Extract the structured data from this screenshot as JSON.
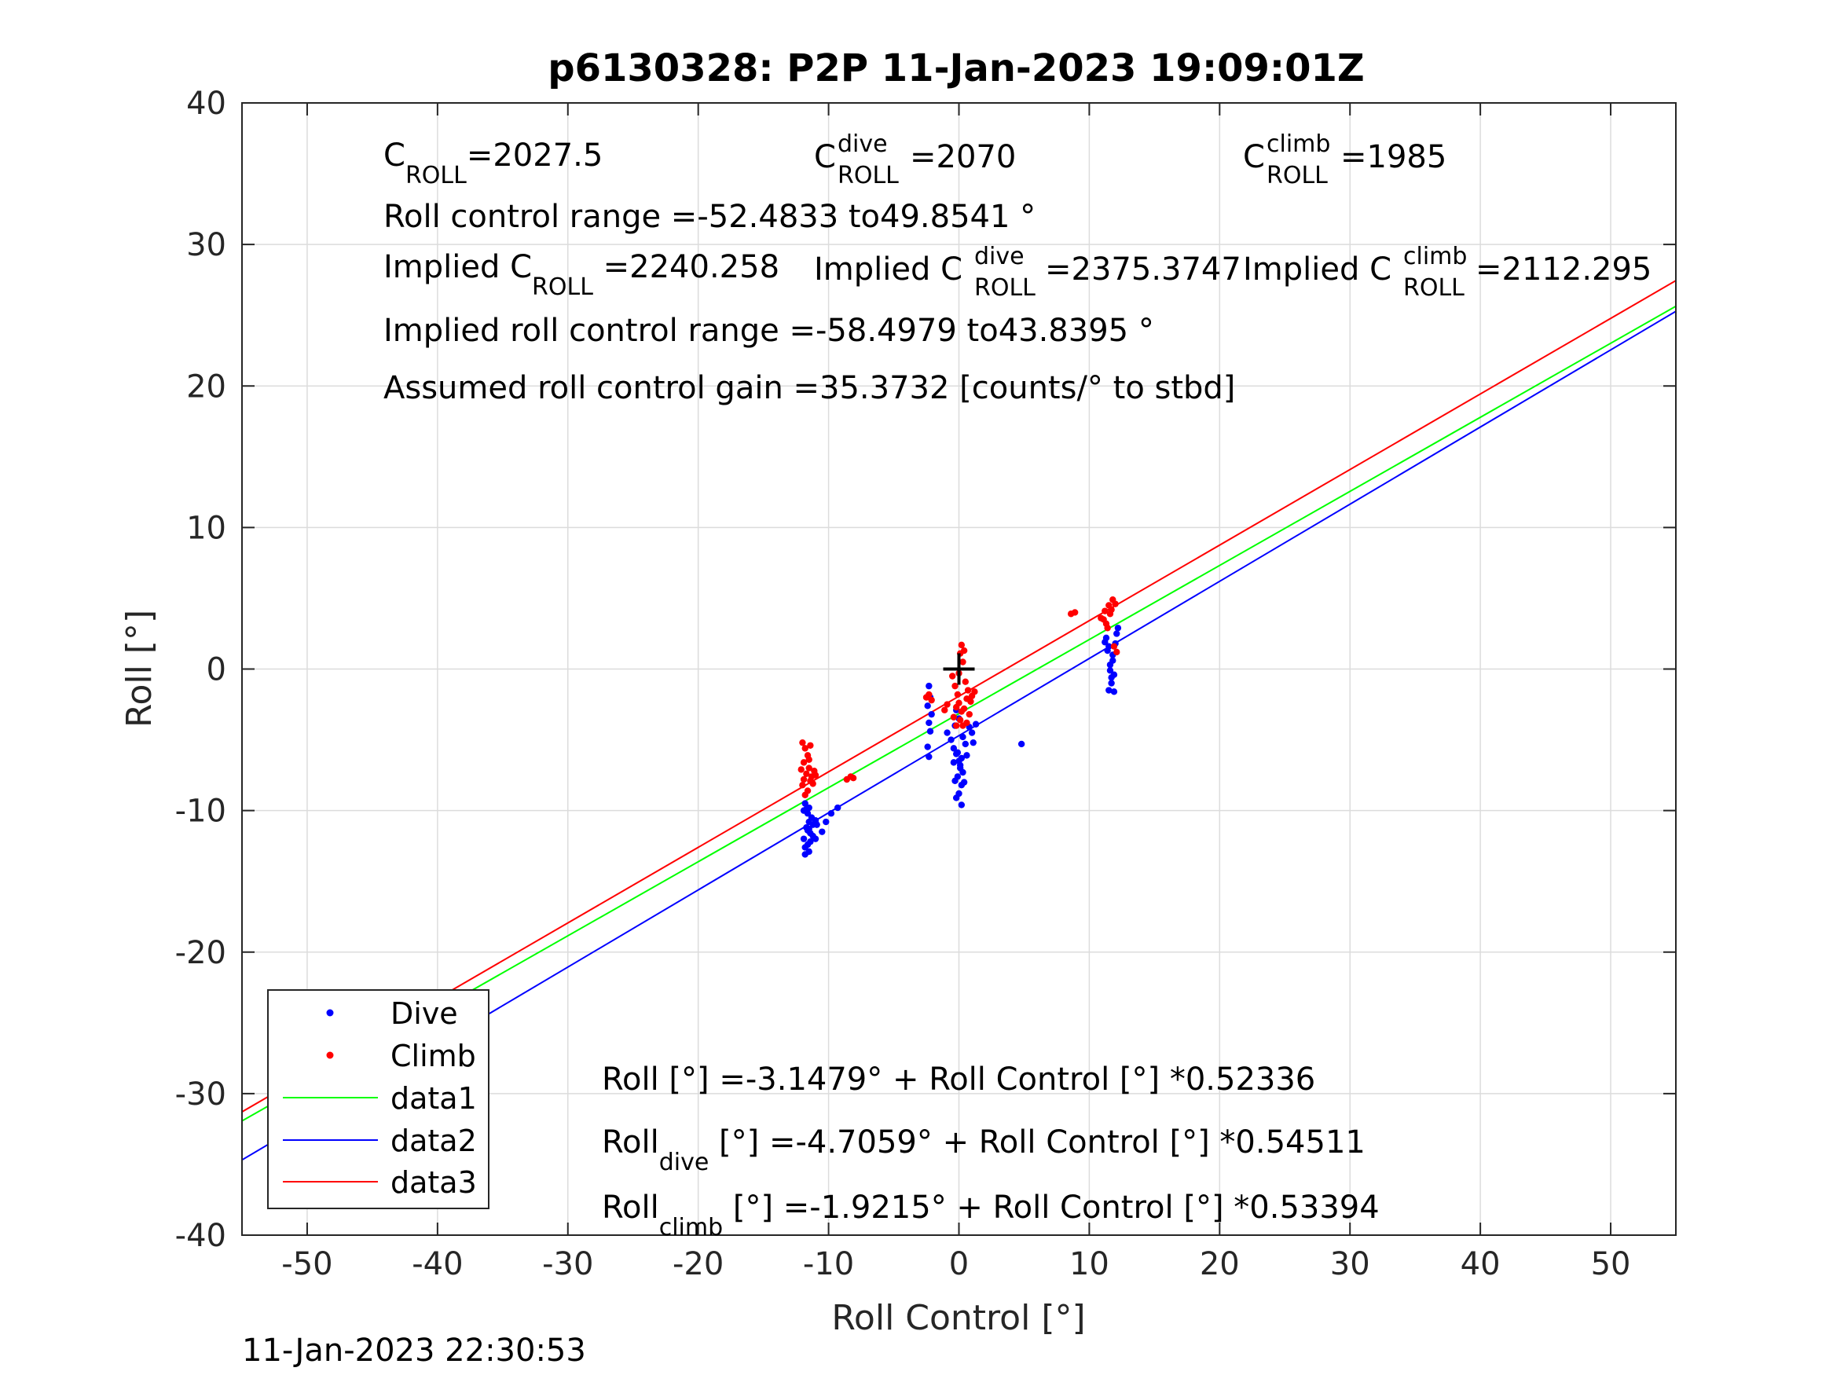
{
  "chart_data": {
    "type": "scatter",
    "title": "p6130328: P2P 11-Jan-2023 19:09:01Z",
    "xlabel": "Roll Control [°]",
    "ylabel": "Roll [°]",
    "xlim": [
      -55,
      55
    ],
    "ylim": [
      -40,
      40
    ],
    "xticks": [
      -50,
      -40,
      -30,
      -20,
      -10,
      0,
      10,
      20,
      30,
      40,
      50
    ],
    "yticks": [
      -40,
      -30,
      -20,
      -10,
      0,
      10,
      20,
      30,
      40
    ],
    "grid": true,
    "legend_position": "lower-left",
    "legend": [
      "Dive",
      "Climb",
      "data1",
      "data2",
      "data3"
    ],
    "series": [
      {
        "name": "Dive",
        "kind": "points",
        "color": "#0000ff",
        "points": [
          [
            -11.8,
            -9.5
          ],
          [
            -11.6,
            -10.2
          ],
          [
            -11.5,
            -10.8
          ],
          [
            -11.7,
            -11.2
          ],
          [
            -11.4,
            -11.6
          ],
          [
            -11.9,
            -12.0
          ],
          [
            -11.6,
            -12.4
          ],
          [
            -11.5,
            -12.9
          ],
          [
            -11.8,
            -13.1
          ],
          [
            -11.3,
            -10.5
          ],
          [
            -11.2,
            -11.0
          ],
          [
            -11.9,
            -10.0
          ],
          [
            -11.5,
            -9.8
          ],
          [
            -11.6,
            -11.4
          ],
          [
            -11.8,
            -12.6
          ],
          [
            -11.4,
            -12.2
          ],
          [
            -11.2,
            -11.8
          ],
          [
            -11.0,
            -10.7
          ],
          [
            -11.7,
            -9.9
          ],
          [
            -11.5,
            -11.3
          ],
          [
            -10.5,
            -11.5
          ],
          [
            -10.2,
            -10.8
          ],
          [
            -9.8,
            -10.2
          ],
          [
            -9.3,
            -9.8
          ],
          [
            -10.9,
            -11.0
          ],
          [
            -11.0,
            -12.0
          ],
          [
            -2.3,
            -1.2
          ],
          [
            -2.2,
            -2.0
          ],
          [
            -2.4,
            -2.6
          ],
          [
            -2.1,
            -3.2
          ],
          [
            -2.3,
            -3.8
          ],
          [
            -2.2,
            -4.4
          ],
          [
            -2.4,
            -5.5
          ],
          [
            -2.3,
            -6.2
          ],
          [
            -0.9,
            -4.5
          ],
          [
            -0.6,
            -5.0
          ],
          [
            -0.4,
            -5.6
          ],
          [
            -0.2,
            -6.0
          ],
          [
            0.0,
            -6.5
          ],
          [
            0.1,
            -7.0
          ],
          [
            -0.1,
            -7.6
          ],
          [
            0.2,
            -8.2
          ],
          [
            0.0,
            -8.8
          ],
          [
            -0.2,
            -9.1
          ],
          [
            0.2,
            -9.6
          ],
          [
            -0.3,
            -4.0
          ],
          [
            0.3,
            -4.8
          ],
          [
            0.5,
            -5.3
          ],
          [
            -0.1,
            -5.9
          ],
          [
            0.1,
            -6.8
          ],
          [
            0.3,
            -7.3
          ],
          [
            -0.3,
            -7.9
          ],
          [
            0.4,
            -8.0
          ],
          [
            0.0,
            -3.5
          ],
          [
            -0.2,
            -2.9
          ],
          [
            0.2,
            -6.3
          ],
          [
            -0.4,
            -6.6
          ],
          [
            1.0,
            -4.5
          ],
          [
            1.3,
            -3.9
          ],
          [
            1.1,
            -5.2
          ],
          [
            0.8,
            -4.1
          ],
          [
            0.6,
            -6.1
          ],
          [
            4.8,
            -5.3
          ],
          [
            11.3,
            2.2
          ],
          [
            11.5,
            1.6
          ],
          [
            11.8,
            1.0
          ],
          [
            11.6,
            0.3
          ],
          [
            11.9,
            -0.4
          ],
          [
            11.7,
            -1.0
          ],
          [
            11.5,
            -1.5
          ],
          [
            11.9,
            -1.6
          ],
          [
            12.1,
            2.5
          ],
          [
            12.0,
            1.8
          ],
          [
            11.6,
            -0.1
          ],
          [
            11.8,
            0.6
          ],
          [
            11.4,
            1.3
          ],
          [
            12.2,
            2.9
          ],
          [
            11.7,
            -0.6
          ],
          [
            11.2,
            1.9
          ]
        ]
      },
      {
        "name": "Climb",
        "kind": "points",
        "color": "#ff0000",
        "points": [
          [
            -12.0,
            -5.2
          ],
          [
            -11.8,
            -5.6
          ],
          [
            -11.6,
            -6.1
          ],
          [
            -11.9,
            -6.6
          ],
          [
            -11.5,
            -7.0
          ],
          [
            -11.7,
            -7.4
          ],
          [
            -11.4,
            -7.9
          ],
          [
            -12.0,
            -8.2
          ],
          [
            -11.6,
            -8.6
          ],
          [
            -11.3,
            -7.6
          ],
          [
            -11.1,
            -7.2
          ],
          [
            -11.8,
            -8.9
          ],
          [
            -11.5,
            -6.4
          ],
          [
            -11.2,
            -8.1
          ],
          [
            -11.9,
            -7.8
          ],
          [
            -11.0,
            -7.5
          ],
          [
            -11.4,
            -5.4
          ],
          [
            -12.1,
            -7.1
          ],
          [
            -8.6,
            -7.8
          ],
          [
            -8.3,
            -7.6
          ],
          [
            -8.1,
            -7.7
          ],
          [
            -2.5,
            -2.0
          ],
          [
            -2.3,
            -1.8
          ],
          [
            -2.1,
            -2.2
          ],
          [
            -0.9,
            -2.5
          ],
          [
            -1.1,
            -2.9
          ],
          [
            -0.5,
            -0.5
          ],
          [
            -0.3,
            -1.2
          ],
          [
            -0.1,
            -1.8
          ],
          [
            0.0,
            -2.4
          ],
          [
            0.2,
            -3.0
          ],
          [
            0.1,
            -3.6
          ],
          [
            -0.2,
            -4.0
          ],
          [
            0.3,
            0.5
          ],
          [
            0.1,
            1.1
          ],
          [
            0.2,
            1.7
          ],
          [
            0.4,
            1.3
          ],
          [
            0.5,
            -0.9
          ],
          [
            0.6,
            -2.1
          ],
          [
            0.4,
            -2.8
          ],
          [
            0.7,
            -1.5
          ],
          [
            0.9,
            -2.3
          ],
          [
            1.0,
            -1.9
          ],
          [
            1.2,
            -1.6
          ],
          [
            0.8,
            -3.2
          ],
          [
            -0.4,
            -3.4
          ],
          [
            0.0,
            -0.3
          ],
          [
            -0.2,
            -2.7
          ],
          [
            0.3,
            -4.0
          ],
          [
            0.6,
            -3.8
          ],
          [
            8.6,
            3.9
          ],
          [
            8.9,
            4.0
          ],
          [
            10.9,
            3.6
          ],
          [
            11.2,
            4.1
          ],
          [
            11.5,
            4.5
          ],
          [
            11.8,
            4.9
          ],
          [
            11.6,
            3.9
          ],
          [
            11.3,
            3.2
          ],
          [
            12.0,
            4.6
          ],
          [
            11.1,
            3.5
          ],
          [
            11.7,
            4.2
          ],
          [
            11.4,
            2.9
          ],
          [
            12.1,
            1.2
          ],
          [
            11.9,
            1.6
          ]
        ]
      },
      {
        "name": "data1",
        "kind": "line",
        "color": "#00ff00",
        "intercept": -3.1479,
        "slope": 0.52336
      },
      {
        "name": "data2",
        "kind": "line",
        "color": "#0000ff",
        "intercept": -4.7059,
        "slope": 0.54511
      },
      {
        "name": "data3",
        "kind": "line",
        "color": "#ff0000",
        "intercept": -1.9215,
        "slope": 0.53394
      }
    ],
    "marker": {
      "x": 0,
      "y": 0,
      "symbol": "+",
      "color": "#000000"
    }
  },
  "annotations": {
    "c_roll": {
      "base": "C",
      "sub": "ROLL",
      "value": "=2027.5"
    },
    "c_roll_dive": {
      "base": "C",
      "sup": "dive",
      "sub": "ROLL",
      "value": " =2070"
    },
    "c_roll_climb": {
      "base": "C",
      "sup": "climb",
      "sub": "ROLL",
      "value": " =1985"
    },
    "roll_control_range": "Roll control range =-52.4833 to49.8541 °",
    "implied_c_roll": {
      "base": "Implied C",
      "sub": "ROLL",
      "value": " =2240.258"
    },
    "implied_c_roll_dive": {
      "base": "Implied C",
      "sup": "dive",
      "sub": "ROLL",
      "value": " =2375.3747"
    },
    "implied_c_roll_climb": {
      "base": "Implied C",
      "sup": "climb",
      "sub": "ROLL",
      "value": " =2112.295"
    },
    "implied_range": "Implied roll control range =-58.4979 to43.8395 °",
    "gain": "Assumed roll control gain =35.3732 [counts/° to stbd]",
    "eq_all": "Roll [°] =-3.1479° + Roll Control [°] *0.52336",
    "eq_dive": {
      "base": "Roll",
      "sub": "dive",
      "value": " [°] =-4.7059° + Roll Control [°] *0.54511"
    },
    "eq_climb": {
      "base": "Roll",
      "sub": "climb",
      "value": " [°] =-1.9215° + Roll Control [°] *0.53394"
    }
  },
  "footer": "11-Jan-2023 22:30:53"
}
